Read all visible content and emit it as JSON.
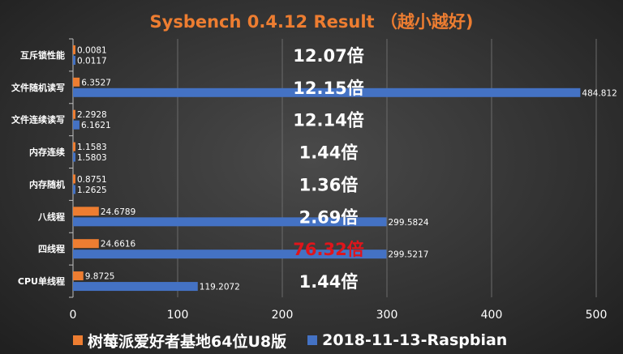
{
  "chart_data": {
    "type": "bar",
    "orientation": "horizontal",
    "title": "Sysbench 0.4.12 Result （越小越好)",
    "categories": [
      "互斥锁性能",
      "文件随机读写",
      "文件连续读写",
      "内存连续",
      "内存随机",
      "八线程",
      "四线程",
      "CPU单线程"
    ],
    "series": [
      {
        "name": "树莓派爱好者基地64位U8版",
        "color": "#ED7D31",
        "values": [
          0.0081,
          6.3527,
          2.2928,
          1.1583,
          0.8751,
          24.6789,
          24.6616,
          9.8725
        ],
        "labels": [
          "0.0081",
          "6.3527",
          "2.2928",
          "1.1583",
          "0.8751",
          "24.6789",
          "24.6616",
          "9.8725"
        ]
      },
      {
        "name": "2018-11-13-Raspbian",
        "color": "#4472C4",
        "values": [
          0.0117,
          484.812,
          6.1621,
          1.5803,
          1.2625,
          299.5824,
          299.5217,
          119.2072
        ],
        "labels": [
          "0.0117",
          "484.812",
          "6.1621",
          "1.5803",
          "1.2625",
          "299.5824",
          "299.5217",
          "119.2072"
        ]
      }
    ],
    "ratios": [
      {
        "text": "12.07倍",
        "color": "#ffffff"
      },
      {
        "text": "12.15倍",
        "color": "#ffffff"
      },
      {
        "text": "12.14倍",
        "color": "#ffffff"
      },
      {
        "text": "1.44倍",
        "color": "#ffffff"
      },
      {
        "text": "1.36倍",
        "color": "#ffffff"
      },
      {
        "text": "2.69倍",
        "color": "#ffffff"
      },
      {
        "text": "76.32倍",
        "color": "#E0151B"
      },
      {
        "text": "1.44倍",
        "color": "#ffffff"
      }
    ],
    "xlim": [
      0,
      500
    ],
    "xticks": [
      "0",
      "100",
      "200",
      "300",
      "400",
      "500"
    ],
    "title_color": "#ED7D31",
    "legend_position": "bottom"
  }
}
